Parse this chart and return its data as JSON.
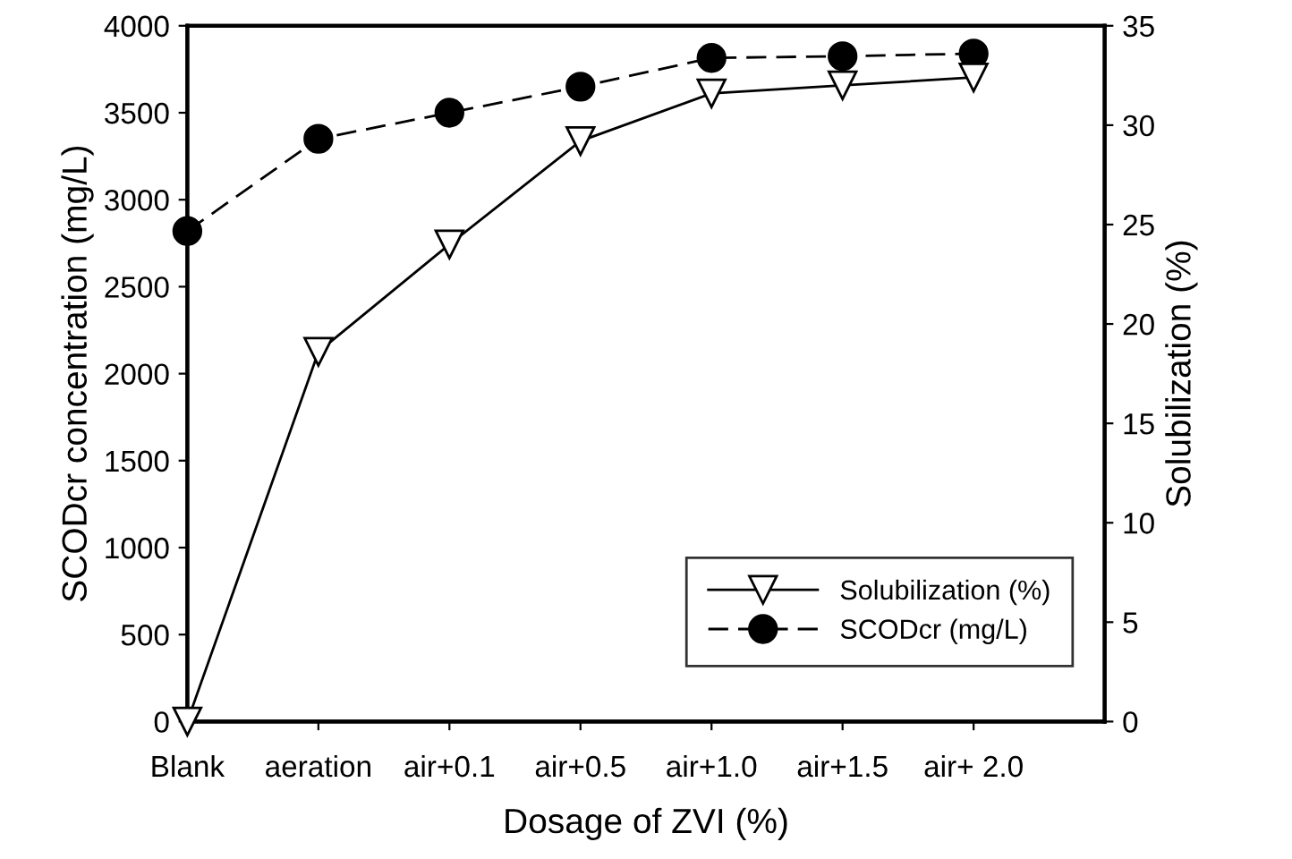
{
  "chart_data": {
    "type": "line",
    "xlabel": "Dosage of ZVI (%)",
    "ylabel": "SCODcr concentration (mg/L)",
    "y2label": "Solubilization (%)",
    "categories": [
      "Blank",
      "aeration",
      "air+0.1",
      "air+0.5",
      "air+1.0",
      "air+1.5",
      "air+ 2.0"
    ],
    "series": [
      {
        "name": "Solubilization (%)",
        "color": "#000000",
        "axis": "y2",
        "marker": "triangle",
        "line_style": "solid",
        "values": [
          0,
          18.6,
          24.0,
          29.2,
          31.6,
          32.0,
          32.4
        ]
      },
      {
        "name": "SCODcr (mg/L)",
        "color": "#000000",
        "axis": "y",
        "marker": "circle",
        "line_style": "dashed",
        "values": [
          2820,
          3350,
          3500,
          3650,
          3815,
          3825,
          3840
        ]
      }
    ],
    "ylim": [
      0,
      4000
    ],
    "yticks": [
      0,
      500,
      1000,
      1500,
      2000,
      2500,
      3000,
      3500,
      4000
    ],
    "y2lim": [
      0,
      35
    ],
    "y2ticks": [
      0,
      5,
      10,
      15,
      20,
      25,
      30,
      35
    ],
    "grid": false,
    "legend": "bottom right"
  }
}
